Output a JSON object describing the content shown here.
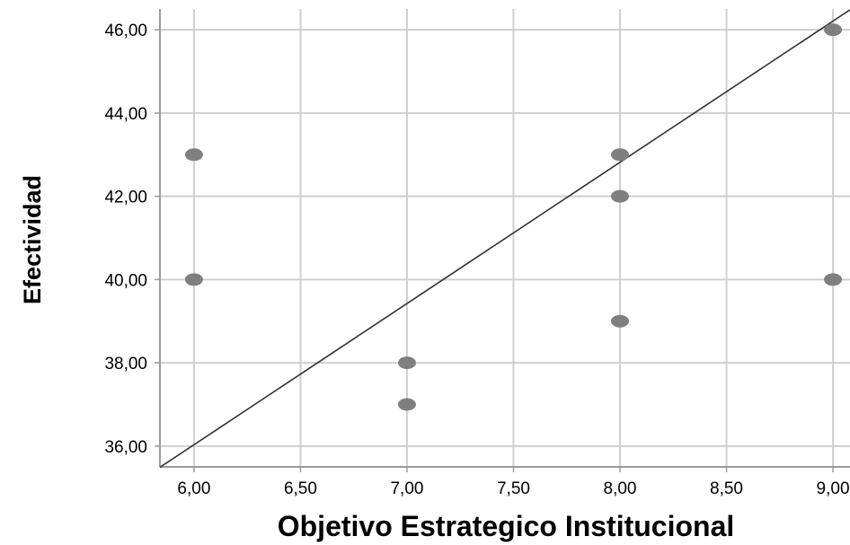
{
  "chart_data": {
    "type": "scatter",
    "xlabel": "Objetivo Estrategico Institucional",
    "ylabel": "Efectividad",
    "xlim": [
      5.84,
      9.08
    ],
    "ylim": [
      35.5,
      46.5
    ],
    "x_ticks": [
      6.0,
      6.5,
      7.0,
      7.5,
      8.0,
      8.5,
      9.0
    ],
    "x_tick_labels": [
      "6,00",
      "6,50",
      "7,00",
      "7,50",
      "8,00",
      "8,50",
      "9,00"
    ],
    "y_ticks": [
      36,
      38,
      40,
      42,
      44,
      46
    ],
    "y_tick_labels": [
      "36,00",
      "38,00",
      "40,00",
      "42,00",
      "44,00",
      "46,00"
    ],
    "grid": true,
    "points": [
      {
        "x": 6,
        "y": 43
      },
      {
        "x": 6,
        "y": 40
      },
      {
        "x": 7,
        "y": 38
      },
      {
        "x": 7,
        "y": 37
      },
      {
        "x": 8,
        "y": 43
      },
      {
        "x": 8,
        "y": 42
      },
      {
        "x": 8,
        "y": 39
      },
      {
        "x": 9,
        "y": 46
      },
      {
        "x": 9,
        "y": 40
      }
    ],
    "fit_line": {
      "type": "linear",
      "x": [
        5.84,
        9.08
      ],
      "y": [
        35.49,
        46.48
      ]
    },
    "colors": {
      "point": "#7f7f7f",
      "grid": "#cfcfcf",
      "axis": "#9a9a9a",
      "line": "#333333"
    }
  }
}
